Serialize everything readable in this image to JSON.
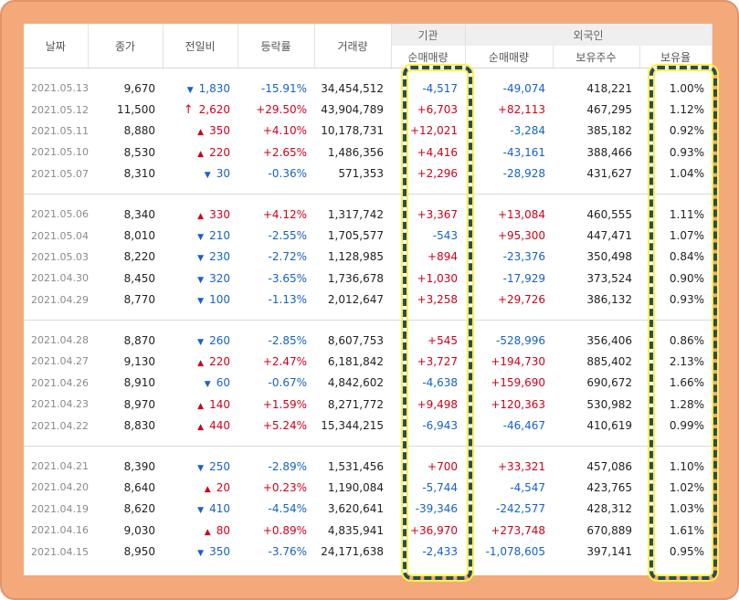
{
  "headers": {
    "date": "날짜",
    "close": "종가",
    "change": "전일비",
    "rate": "등락률",
    "volume": "거래량",
    "institution_group": "기관",
    "foreign_group": "외국인",
    "inst_net": "순매매량",
    "foreign_net": "순매매량",
    "foreign_holding": "보유주수",
    "foreign_ratio": "보유율"
  },
  "colors": {
    "up": "#d0001b",
    "down": "#1561c9",
    "highlight": "#fbf43a",
    "frame": "#f4a97b"
  },
  "groups": [
    [
      {
        "date": "2021.05.13",
        "close": "9,670",
        "dir": "down",
        "change": "1,830",
        "rate": "-15.91%",
        "volume": "34,454,512",
        "inst": "-4,517",
        "fnet": "-49,074",
        "hold": "418,221",
        "ratio": "1.00%"
      },
      {
        "date": "2021.05.12",
        "close": "11,500",
        "dir": "upper",
        "change": "2,620",
        "rate": "+29.50%",
        "volume": "43,904,789",
        "inst": "+6,703",
        "fnet": "+82,113",
        "hold": "467,295",
        "ratio": "1.12%"
      },
      {
        "date": "2021.05.11",
        "close": "8,880",
        "dir": "up",
        "change": "350",
        "rate": "+4.10%",
        "volume": "10,178,731",
        "inst": "+12,021",
        "fnet": "-3,284",
        "hold": "385,182",
        "ratio": "0.92%"
      },
      {
        "date": "2021.05.10",
        "close": "8,530",
        "dir": "up",
        "change": "220",
        "rate": "+2.65%",
        "volume": "1,486,356",
        "inst": "+4,416",
        "fnet": "-43,161",
        "hold": "388,466",
        "ratio": "0.93%"
      },
      {
        "date": "2021.05.07",
        "close": "8,310",
        "dir": "down",
        "change": "30",
        "rate": "-0.36%",
        "volume": "571,353",
        "inst": "+2,296",
        "fnet": "-28,928",
        "hold": "431,627",
        "ratio": "1.04%"
      }
    ],
    [
      {
        "date": "2021.05.06",
        "close": "8,340",
        "dir": "up",
        "change": "330",
        "rate": "+4.12%",
        "volume": "1,317,742",
        "inst": "+3,367",
        "fnet": "+13,084",
        "hold": "460,555",
        "ratio": "1.11%"
      },
      {
        "date": "2021.05.04",
        "close": "8,010",
        "dir": "down",
        "change": "210",
        "rate": "-2.55%",
        "volume": "1,705,577",
        "inst": "-543",
        "fnet": "+95,300",
        "hold": "447,471",
        "ratio": "1.07%"
      },
      {
        "date": "2021.05.03",
        "close": "8,220",
        "dir": "down",
        "change": "230",
        "rate": "-2.72%",
        "volume": "1,128,985",
        "inst": "+894",
        "fnet": "-23,376",
        "hold": "350,498",
        "ratio": "0.84%"
      },
      {
        "date": "2021.04.30",
        "close": "8,450",
        "dir": "down",
        "change": "320",
        "rate": "-3.65%",
        "volume": "1,736,678",
        "inst": "+1,030",
        "fnet": "-17,929",
        "hold": "373,524",
        "ratio": "0.90%"
      },
      {
        "date": "2021.04.29",
        "close": "8,770",
        "dir": "down",
        "change": "100",
        "rate": "-1.13%",
        "volume": "2,012,647",
        "inst": "+3,258",
        "fnet": "+29,726",
        "hold": "386,132",
        "ratio": "0.93%"
      }
    ],
    [
      {
        "date": "2021.04.28",
        "close": "8,870",
        "dir": "down",
        "change": "260",
        "rate": "-2.85%",
        "volume": "8,607,753",
        "inst": "+545",
        "fnet": "-528,996",
        "hold": "356,406",
        "ratio": "0.86%"
      },
      {
        "date": "2021.04.27",
        "close": "9,130",
        "dir": "up",
        "change": "220",
        "rate": "+2.47%",
        "volume": "6,181,842",
        "inst": "+3,727",
        "fnet": "+194,730",
        "hold": "885,402",
        "ratio": "2.13%"
      },
      {
        "date": "2021.04.26",
        "close": "8,910",
        "dir": "down",
        "change": "60",
        "rate": "-0.67%",
        "volume": "4,842,602",
        "inst": "-4,638",
        "fnet": "+159,690",
        "hold": "690,672",
        "ratio": "1.66%"
      },
      {
        "date": "2021.04.23",
        "close": "8,970",
        "dir": "up",
        "change": "140",
        "rate": "+1.59%",
        "volume": "8,271,772",
        "inst": "+9,498",
        "fnet": "+120,363",
        "hold": "530,982",
        "ratio": "1.28%"
      },
      {
        "date": "2021.04.22",
        "close": "8,830",
        "dir": "up",
        "change": "440",
        "rate": "+5.24%",
        "volume": "15,344,215",
        "inst": "-6,943",
        "fnet": "-46,467",
        "hold": "410,619",
        "ratio": "0.99%"
      }
    ],
    [
      {
        "date": "2021.04.21",
        "close": "8,390",
        "dir": "down",
        "change": "250",
        "rate": "-2.89%",
        "volume": "1,531,456",
        "inst": "+700",
        "fnet": "+33,321",
        "hold": "457,086",
        "ratio": "1.10%"
      },
      {
        "date": "2021.04.20",
        "close": "8,640",
        "dir": "up",
        "change": "20",
        "rate": "+0.23%",
        "volume": "1,190,084",
        "inst": "-5,744",
        "fnet": "-4,547",
        "hold": "423,765",
        "ratio": "1.02%"
      },
      {
        "date": "2021.04.19",
        "close": "8,620",
        "dir": "down",
        "change": "410",
        "rate": "-4.54%",
        "volume": "3,620,641",
        "inst": "-39,346",
        "fnet": "-242,577",
        "hold": "428,312",
        "ratio": "1.03%"
      },
      {
        "date": "2021.04.16",
        "close": "9,030",
        "dir": "up",
        "change": "80",
        "rate": "+0.89%",
        "volume": "4,835,941",
        "inst": "+36,970",
        "fnet": "+273,748",
        "hold": "670,889",
        "ratio": "1.61%"
      },
      {
        "date": "2021.04.15",
        "close": "8,950",
        "dir": "down",
        "change": "350",
        "rate": "-3.76%",
        "volume": "24,171,638",
        "inst": "-2,433",
        "fnet": "-1,078,605",
        "hold": "397,141",
        "ratio": "0.95%"
      }
    ]
  ]
}
